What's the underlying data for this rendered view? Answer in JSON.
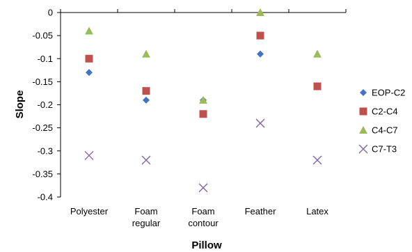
{
  "chart_data": {
    "type": "scatter",
    "title": "",
    "xlabel": "Pillow",
    "ylabel": "Slope",
    "categories": [
      [
        "Polyester"
      ],
      [
        "Foam",
        "regular"
      ],
      [
        "Foam",
        "contour"
      ],
      [
        "Feather"
      ],
      [
        "Latex"
      ]
    ],
    "ylim": [
      -0.4,
      0
    ],
    "yticks": [
      0,
      -0.05,
      -0.1,
      -0.15,
      -0.2,
      -0.25,
      -0.3,
      -0.35,
      -0.4
    ],
    "ytick_labels": [
      "0",
      "-0.05",
      "-0.1",
      "-0.15",
      "-0.2",
      "-0.25",
      "-0.3",
      "-0.35",
      "-0.4"
    ],
    "grid": false,
    "legend_position": "right",
    "series": [
      {
        "name": "EOP-C2",
        "marker": "diamond",
        "color": "#4472c4",
        "values": [
          -0.13,
          -0.19,
          -0.19,
          -0.09,
          null
        ]
      },
      {
        "name": "C2-C4",
        "marker": "square",
        "color": "#c0504d",
        "values": [
          -0.1,
          -0.17,
          -0.22,
          -0.05,
          -0.16
        ]
      },
      {
        "name": "C4-C7",
        "marker": "triangle",
        "color": "#9bbb59",
        "values": [
          -0.04,
          -0.09,
          -0.19,
          0.0,
          -0.09
        ]
      },
      {
        "name": "C7-T3",
        "marker": "x",
        "color": "#8064a2",
        "values": [
          -0.31,
          -0.32,
          -0.38,
          -0.24,
          -0.32
        ]
      }
    ]
  }
}
